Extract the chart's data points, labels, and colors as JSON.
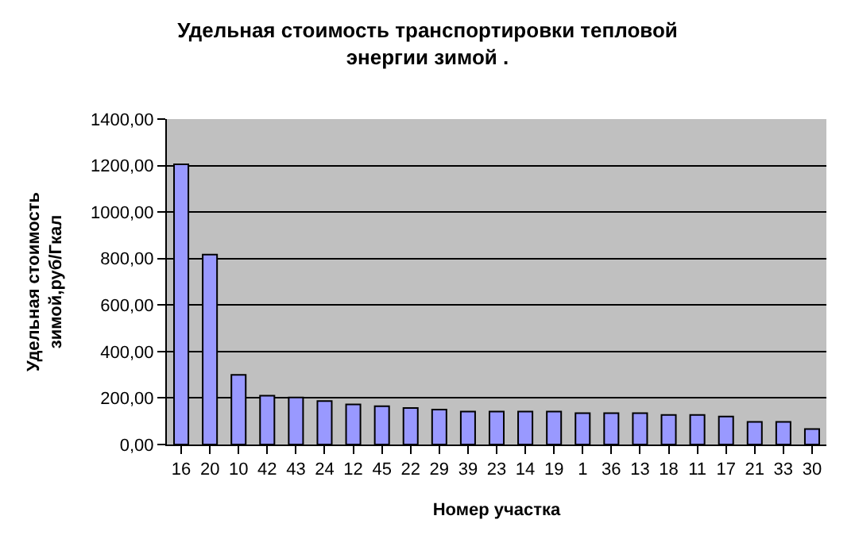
{
  "chart_data": {
    "type": "bar",
    "title": "Удельная стоимость транспортировки тепловой\nэнергии зимой .",
    "xlabel": "Номер участка",
    "ylabel": "Удельная стоимость\nзимой,руб/Гкал",
    "categories": [
      "16",
      "20",
      "10",
      "42",
      "43",
      "24",
      "12",
      "45",
      "22",
      "29",
      "39",
      "23",
      "14",
      "19",
      "1",
      "36",
      "13",
      "18",
      "11",
      "17",
      "21",
      "33",
      "30"
    ],
    "values": [
      1205,
      817,
      300,
      210,
      202,
      187,
      172,
      165,
      157,
      150,
      142,
      142,
      142,
      142,
      135,
      135,
      135,
      127,
      127,
      120,
      97,
      97,
      67
    ],
    "color": "#9999ff",
    "ylim": [
      0,
      1400
    ],
    "yticks": [
      {
        "value": 0,
        "label": "0,00"
      },
      {
        "value": 200,
        "label": "200,00"
      },
      {
        "value": 400,
        "label": "400,00"
      },
      {
        "value": 600,
        "label": "600,00"
      },
      {
        "value": 800,
        "label": "800,00"
      },
      {
        "value": 1000,
        "label": "1000,00"
      },
      {
        "value": 1200,
        "label": "1200,00"
      },
      {
        "value": 1400,
        "label": "1400,00"
      }
    ],
    "grid": "y",
    "legend": false
  }
}
